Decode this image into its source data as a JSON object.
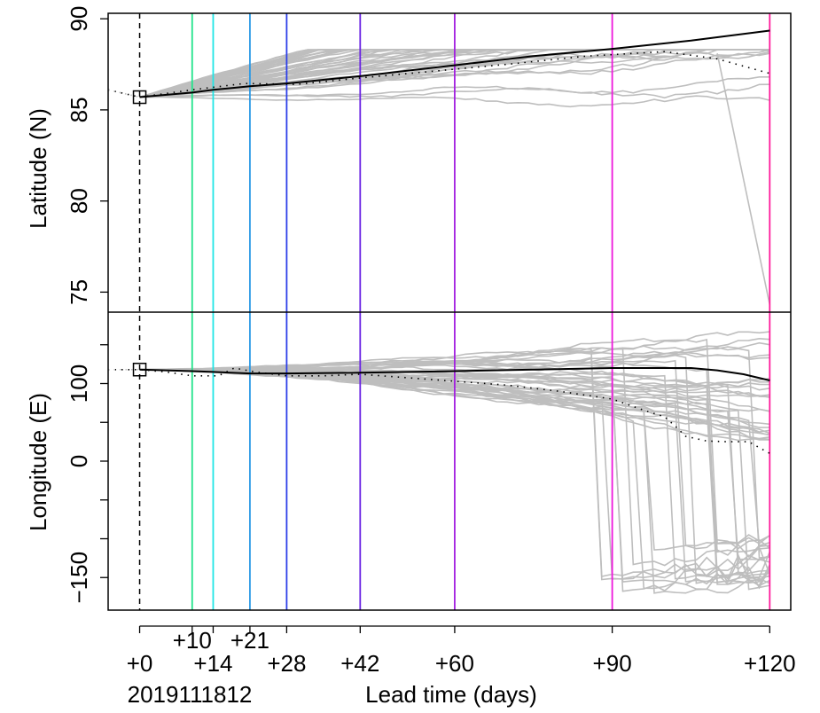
{
  "chart_data": [
    {
      "type": "line",
      "panel": "top",
      "ylabel": "Latitude (N)",
      "ylim": [
        73.9,
        90.3
      ],
      "yticks": [
        75,
        80,
        85,
        90
      ],
      "xlim": [
        -6,
        124
      ],
      "start_point": {
        "x": 0,
        "y": 85.7
      },
      "ensemble_mean": {
        "x": [
          0,
          10,
          14,
          21,
          28,
          42,
          60,
          75,
          90,
          105,
          120
        ],
        "y": [
          85.7,
          85.95,
          86.1,
          86.3,
          86.45,
          86.85,
          87.45,
          87.95,
          88.35,
          88.8,
          89.35
        ]
      },
      "observed": {
        "x": [
          -6,
          0,
          10,
          20,
          30,
          42,
          55,
          70,
          85,
          100,
          110,
          120
        ],
        "y": [
          86.1,
          85.7,
          86.1,
          86.45,
          86.4,
          86.75,
          87.1,
          87.5,
          87.95,
          88.2,
          87.8,
          87.0
        ]
      }
    },
    {
      "type": "line",
      "panel": "bottom",
      "ylabel": "Longitude (E)",
      "ylim": [
        -192,
        192
      ],
      "yticks": [
        -150,
        -100,
        -50,
        0,
        50,
        100,
        150
      ],
      "ytick_labels": [
        "−150",
        "",
        "",
        "0",
        "",
        "100",
        ""
      ],
      "xlim": [
        -6,
        124
      ],
      "start_point": {
        "x": 0,
        "y": 118
      },
      "ensemble_mean": {
        "x": [
          0,
          10,
          14,
          21,
          28,
          42,
          60,
          75,
          90,
          100,
          105,
          110,
          115,
          120
        ],
        "y": [
          118,
          116,
          115,
          113,
          113,
          114,
          116,
          118,
          120,
          120,
          120,
          117,
          112,
          104
        ]
      },
      "observed": {
        "x": [
          -6,
          0,
          5,
          10,
          15,
          18,
          22,
          28,
          35,
          42,
          50,
          60,
          70,
          80,
          90,
          95,
          100,
          102,
          104,
          108,
          112,
          116,
          120
        ],
        "y": [
          118,
          118,
          115,
          110,
          110,
          120,
          115,
          110,
          110,
          112,
          108,
          103,
          98,
          90,
          80,
          68,
          57,
          45,
          32,
          26,
          25,
          25,
          10
        ]
      }
    }
  ],
  "lead_times": {
    "days": [
      10,
      14,
      21,
      28,
      42,
      60,
      90,
      120
    ],
    "colors": [
      "#22e38b",
      "#20e5e5",
      "#2b9ae6",
      "#2d3fe8",
      "#6a24e3",
      "#a21fe0",
      "#ee18dc",
      "#ff1a9a"
    ]
  },
  "xticks_row1": [
    {
      "x": 10,
      "label": "+10"
    },
    {
      "x": 21,
      "label": "+21"
    }
  ],
  "xticks_row2": [
    {
      "x": 0,
      "label": "+0"
    },
    {
      "x": 14,
      "label": "+14"
    },
    {
      "x": 28,
      "label": "+28"
    },
    {
      "x": 42,
      "label": "+42"
    },
    {
      "x": 60,
      "label": "+60"
    },
    {
      "x": 90,
      "label": "+90"
    },
    {
      "x": 120,
      "label": "+120"
    }
  ],
  "init_label": "2019111812",
  "xlabel": "Lead time (days)",
  "colors": {
    "ensemble": "#bebebe",
    "mean": "#000000",
    "observed": "#000000",
    "init_line": "#000000"
  }
}
